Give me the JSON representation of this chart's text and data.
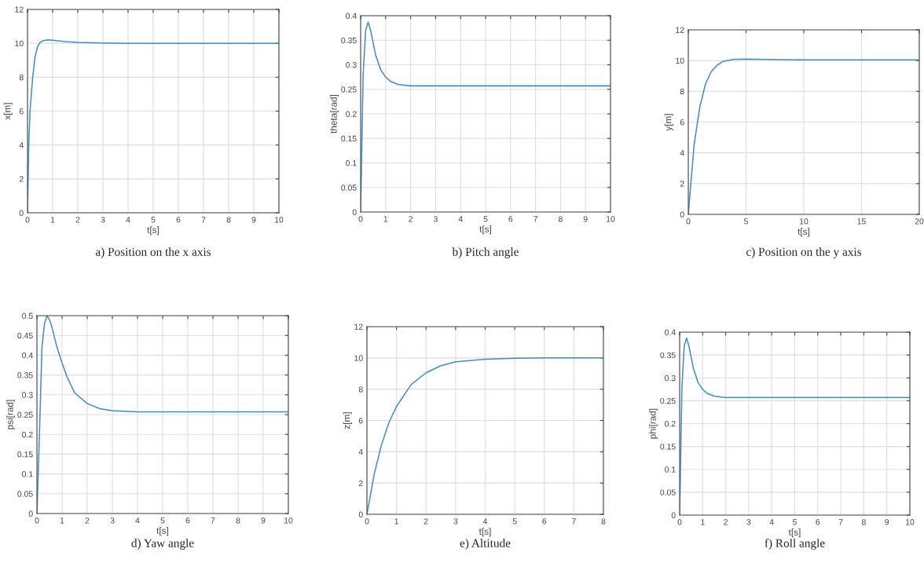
{
  "chart_data": [
    {
      "type": "line",
      "title": "a) Position on the x axis",
      "xlabel": "t[s]",
      "ylabel": "x[m]",
      "xlim": [
        0,
        10
      ],
      "ylim": [
        0,
        12
      ],
      "xticks": [
        0,
        1,
        2,
        3,
        4,
        5,
        6,
        7,
        8,
        9,
        10
      ],
      "yticks": [
        0,
        2,
        4,
        6,
        8,
        10,
        12
      ],
      "grid": true,
      "series": [
        {
          "color": "#3d8fc4",
          "x": [
            0,
            0.05,
            0.1,
            0.2,
            0.3,
            0.4,
            0.5,
            0.6,
            0.8,
            1,
            1.5,
            2,
            3,
            4,
            10
          ],
          "values": [
            0,
            4,
            6,
            7.9,
            9.2,
            9.8,
            10.05,
            10.15,
            10.2,
            10.18,
            10.1,
            10.05,
            10.02,
            10,
            10
          ]
        }
      ]
    },
    {
      "type": "line",
      "title": "b) Pitch angle",
      "xlabel": "t[s]",
      "ylabel": "theta[rad]",
      "xlim": [
        0,
        10
      ],
      "ylim": [
        0,
        0.4
      ],
      "xticks": [
        0,
        1,
        2,
        3,
        4,
        5,
        6,
        7,
        8,
        9,
        10
      ],
      "yticks": [
        0,
        0.05,
        0.1,
        0.15,
        0.2,
        0.25,
        0.3,
        0.35,
        0.4
      ],
      "grid": true,
      "series": [
        {
          "color": "#3d8fc4",
          "x": [
            0,
            0.1,
            0.2,
            0.3,
            0.4,
            0.5,
            0.6,
            0.8,
            1,
            1.2,
            1.5,
            2,
            10
          ],
          "values": [
            0,
            0.28,
            0.37,
            0.387,
            0.37,
            0.345,
            0.32,
            0.29,
            0.275,
            0.266,
            0.26,
            0.257,
            0.257
          ]
        }
      ]
    },
    {
      "type": "line",
      "title": "c) Position on the y axis",
      "xlabel": "t[s]",
      "ylabel": "y[m]",
      "xlim": [
        0,
        20
      ],
      "ylim": [
        0,
        12
      ],
      "xticks": [
        0,
        5,
        10,
        15,
        20
      ],
      "yticks": [
        0,
        2,
        4,
        6,
        8,
        10,
        12
      ],
      "grid": true,
      "series": [
        {
          "color": "#3d8fc4",
          "x": [
            0,
            0.5,
            1,
            1.5,
            2,
            2.5,
            3,
            4,
            5,
            7,
            10,
            20
          ],
          "values": [
            0,
            4.5,
            7,
            8.5,
            9.3,
            9.7,
            9.95,
            10.08,
            10.1,
            10.07,
            10.05,
            10.05
          ]
        }
      ]
    },
    {
      "type": "line",
      "title": "d) Yaw angle",
      "xlabel": "t[s]",
      "ylabel": "psi[rad]",
      "xlim": [
        0,
        10
      ],
      "ylim": [
        0,
        0.5
      ],
      "xticks": [
        0,
        1,
        2,
        3,
        4,
        5,
        6,
        7,
        8,
        9,
        10
      ],
      "yticks": [
        0,
        0.05,
        0.1,
        0.15,
        0.2,
        0.25,
        0.3,
        0.35,
        0.4,
        0.45,
        0.5
      ],
      "grid": true,
      "series": [
        {
          "color": "#3d8fc4",
          "x": [
            0,
            0.1,
            0.2,
            0.3,
            0.4,
            0.5,
            0.6,
            0.8,
            1,
            1.2,
            1.5,
            2,
            2.5,
            3,
            4,
            10
          ],
          "values": [
            0,
            0.2,
            0.42,
            0.48,
            0.5,
            0.49,
            0.47,
            0.42,
            0.38,
            0.345,
            0.305,
            0.278,
            0.265,
            0.26,
            0.257,
            0.257
          ]
        }
      ]
    },
    {
      "type": "line",
      "title": "e) Altitude",
      "xlabel": "t[s]",
      "ylabel": "z[m]",
      "xlim": [
        0,
        8
      ],
      "ylim": [
        0,
        12
      ],
      "xticks": [
        0,
        1,
        2,
        3,
        4,
        5,
        6,
        7,
        8
      ],
      "yticks": [
        0,
        2,
        4,
        6,
        8,
        10,
        12
      ],
      "grid": true,
      "series": [
        {
          "color": "#3d8fc4",
          "x": [
            0,
            0.25,
            0.5,
            0.75,
            1,
            1.5,
            2,
            2.5,
            3,
            4,
            5,
            6,
            8
          ],
          "values": [
            0,
            2.6,
            4.5,
            5.9,
            6.9,
            8.3,
            9.05,
            9.5,
            9.75,
            9.92,
            9.98,
            10,
            10
          ]
        }
      ]
    },
    {
      "type": "line",
      "title": "f) Roll angle",
      "xlabel": "t[s]",
      "ylabel": "phi[rad]",
      "xlim": [
        0,
        10
      ],
      "ylim": [
        0,
        0.4
      ],
      "xticks": [
        0,
        1,
        2,
        3,
        4,
        5,
        6,
        7,
        8,
        9,
        10
      ],
      "yticks": [
        0,
        0.05,
        0.1,
        0.15,
        0.2,
        0.25,
        0.3,
        0.35,
        0.4
      ],
      "grid": true,
      "series": [
        {
          "color": "#3d8fc4",
          "x": [
            0,
            0.1,
            0.2,
            0.3,
            0.4,
            0.5,
            0.6,
            0.8,
            1,
            1.2,
            1.5,
            2,
            10
          ],
          "values": [
            0,
            0.28,
            0.37,
            0.387,
            0.37,
            0.345,
            0.32,
            0.29,
            0.275,
            0.266,
            0.26,
            0.257,
            0.257
          ]
        }
      ]
    }
  ]
}
